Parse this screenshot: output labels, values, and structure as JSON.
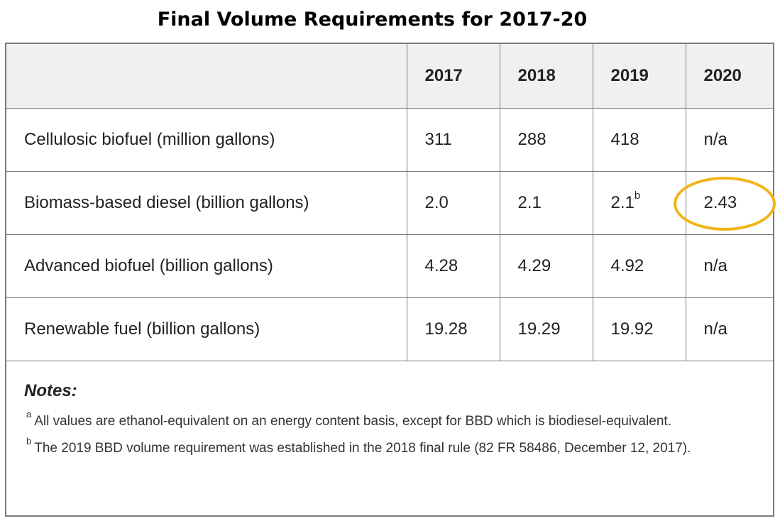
{
  "title": "Final Volume Requirements for 2017-20",
  "table": {
    "headers": [
      "",
      "2017",
      "2018",
      "2019",
      "2020"
    ],
    "rows": [
      {
        "label": "Cellulosic biofuel (million gallons)",
        "values": [
          "311",
          "288",
          "418",
          "n/a"
        ],
        "sup": [
          "",
          "",
          "",
          ""
        ]
      },
      {
        "label": "Biomass-based diesel (billion gallons)",
        "values": [
          "2.0",
          "2.1",
          "2.1",
          "2.43"
        ],
        "sup": [
          "",
          "",
          "b",
          ""
        ]
      },
      {
        "label": "Advanced biofuel (billion gallons)",
        "values": [
          "4.28",
          "4.29",
          "4.92",
          "n/a"
        ],
        "sup": [
          "",
          "",
          "",
          ""
        ]
      },
      {
        "label": "Renewable fuel (billion gallons)",
        "values": [
          "19.28",
          "19.29",
          "19.92",
          "n/a"
        ],
        "sup": [
          "",
          "",
          "",
          ""
        ]
      }
    ]
  },
  "notes": {
    "title": "Notes:",
    "items": [
      {
        "marker": "a",
        "text": "All values are ethanol-equivalent on an energy content basis, except for BBD which is biodiesel-equivalent."
      },
      {
        "marker": "b",
        "text": "The 2019 BBD volume requirement was established in the 2018 final rule (82 FR 58486, December 12, 2017)."
      }
    ]
  },
  "highlight": {
    "color": "#f2b416",
    "target": "Biomass-based diesel 2020"
  }
}
